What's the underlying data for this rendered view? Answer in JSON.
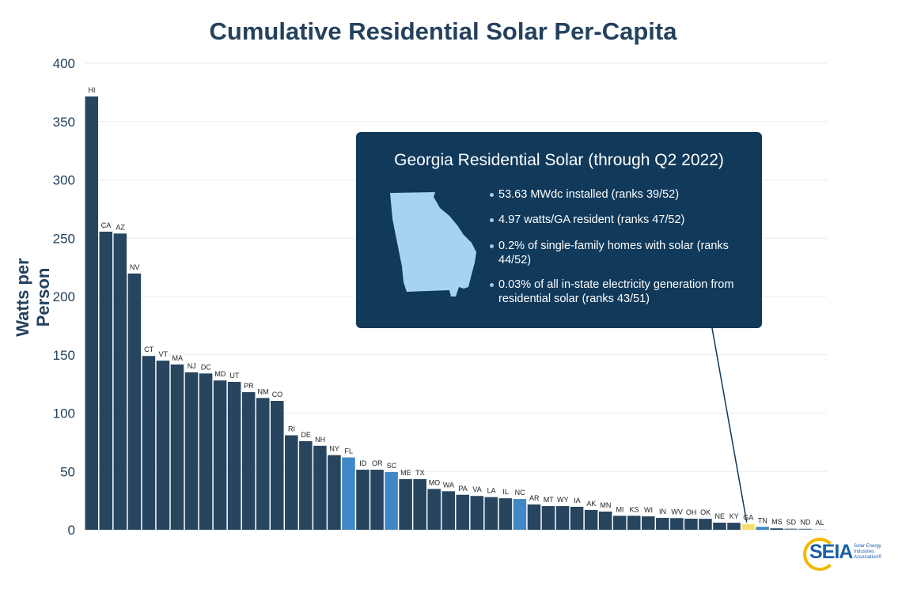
{
  "chart_data": {
    "type": "bar",
    "title": "Cumulative Residential Solar Per-Capita",
    "xlabel": "",
    "ylabel": "Watts per Person",
    "ylim": [
      0,
      400
    ],
    "yticks": [
      0,
      50,
      100,
      150,
      200,
      250,
      300,
      350,
      400
    ],
    "grid": true,
    "categories": [
      "HI",
      "CA",
      "AZ",
      "NV",
      "CT",
      "VT",
      "MA",
      "NJ",
      "DC",
      "MD",
      "UT",
      "PR",
      "NM",
      "CO",
      "RI",
      "DE",
      "NH",
      "NY",
      "FL",
      "ID",
      "OR",
      "SC",
      "ME",
      "TX",
      "MO",
      "WA",
      "PA",
      "VA",
      "LA",
      "IL",
      "NC",
      "AR",
      "MT",
      "WY",
      "IA",
      "AK",
      "MN",
      "MI",
      "KS",
      "WI",
      "IN",
      "WV",
      "OH",
      "OK",
      "NE",
      "KY",
      "GA",
      "TN",
      "MS",
      "SD",
      "ND",
      "AL"
    ],
    "values": [
      371.5,
      255.6,
      254,
      219.7,
      149,
      145,
      141.7,
      135,
      134,
      128,
      126.8,
      118,
      113,
      110.5,
      81,
      76,
      72,
      64,
      62,
      51.5,
      51.5,
      49.5,
      43.4,
      43.4,
      35,
      33,
      30,
      29,
      28,
      27,
      26.4,
      21.7,
      20.3,
      20.3,
      19.7,
      17,
      15.6,
      12,
      12,
      11.5,
      10.2,
      10,
      9.5,
      9.4,
      6.1,
      6,
      4.97,
      2.5,
      1.2,
      1,
      0.9,
      0.6
    ],
    "colors": {
      "default": "#27455f",
      "highlight_blue": "#3f88c5",
      "georgia": "#f5df6f",
      "grey": "#6f8294",
      "light": "#c5dff2"
    },
    "bar_color_overrides": {
      "FL": "#3f88c5",
      "SC": "#3f88c5",
      "NC": "#3f88c5",
      "TN": "#3f88c5",
      "GA": "#f5df6f",
      "SD": "#6f8294",
      "ND": "#6f8294",
      "AL": "#c5dff2"
    },
    "annotation": {
      "title": "Georgia Residential Solar (through Q2 2022)",
      "bullets": [
        "53.63 MWdc installed (ranks 39/52)",
        "4.97 watts/GA resident (ranks 47/52)",
        "0.2% of single-family homes with solar (ranks 44/52)",
        "0.03% of all in-state electricity generation from residential solar (ranks 43/51)"
      ],
      "target": "GA"
    }
  },
  "logo": {
    "text": "SEIA",
    "subtitle": "Solar Energy Industries Association®"
  }
}
